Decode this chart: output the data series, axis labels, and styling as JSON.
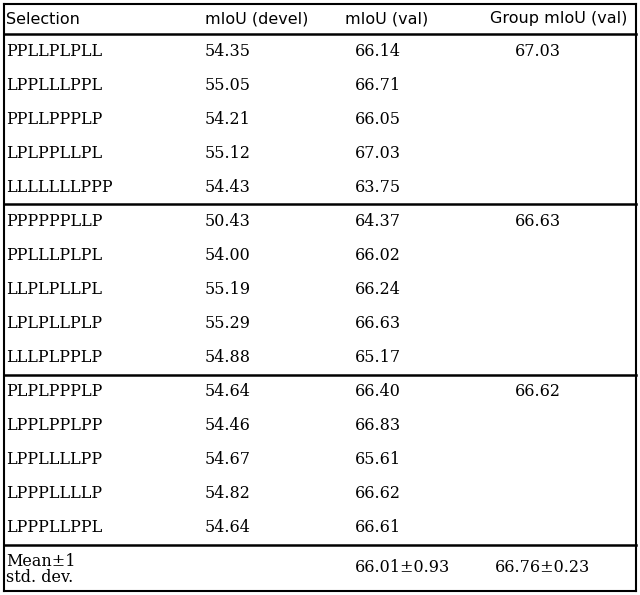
{
  "header": [
    "Selection",
    "mIoU (devel)",
    "mIoU (val)",
    "Group mIoU (val)"
  ],
  "groups": [
    {
      "rows": [
        [
          "PPLLPLPLL",
          "54.35",
          "66.14",
          "67.03"
        ],
        [
          "LPPLLLPPL",
          "55.05",
          "66.71",
          ""
        ],
        [
          "PPLLPPPLP",
          "54.21",
          "66.05",
          ""
        ],
        [
          "LPLPPLLPL",
          "55.12",
          "67.03",
          ""
        ],
        [
          "LLLLLLLPPP",
          "54.43",
          "63.75",
          ""
        ]
      ]
    },
    {
      "rows": [
        [
          "PPPPPPLLP",
          "50.43",
          "64.37",
          "66.63"
        ],
        [
          "PPLLLPLPL",
          "54.00",
          "66.02",
          ""
        ],
        [
          "LLPLPLLPL",
          "55.19",
          "66.24",
          ""
        ],
        [
          "LPLPLLPLP",
          "55.29",
          "66.63",
          ""
        ],
        [
          "LLLPLPPLP",
          "54.88",
          "65.17",
          ""
        ]
      ]
    },
    {
      "rows": [
        [
          "PLPLPPPLP",
          "54.64",
          "66.40",
          "66.62"
        ],
        [
          "LPPLPPLPP",
          "54.46",
          "66.83",
          ""
        ],
        [
          "LPPLLLLPP",
          "54.67",
          "65.61",
          ""
        ],
        [
          "LPPPLLLLP",
          "54.82",
          "66.62",
          ""
        ],
        [
          "LPPPLLPPL",
          "54.64",
          "66.61",
          ""
        ]
      ]
    }
  ],
  "footer": [
    "Mean±1\nstd. dev.",
    "",
    "66.01±0.93",
    "66.76±0.23"
  ],
  "font_size": 11.5,
  "header_font_size": 11.5
}
